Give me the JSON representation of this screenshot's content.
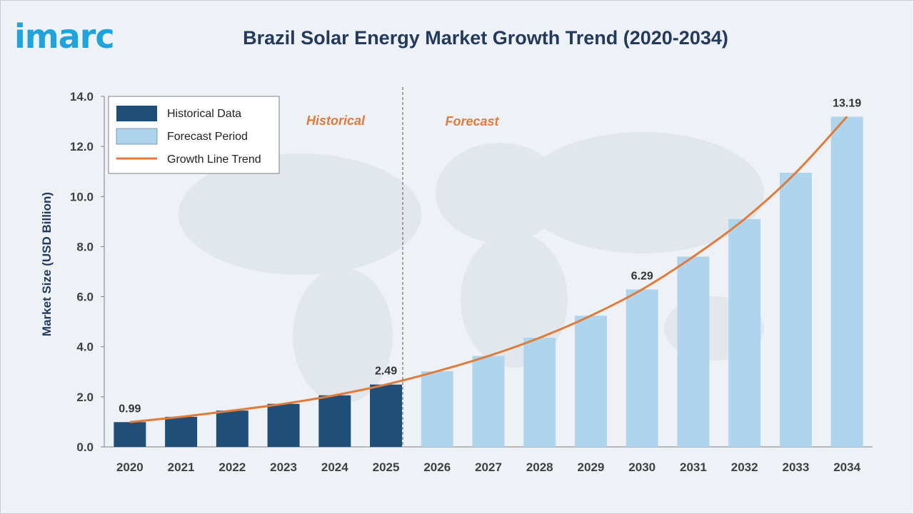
{
  "header": {
    "logo_text": "imarc",
    "title": "Brazil Solar Energy Market Growth Trend (2020-2034)"
  },
  "legend": {
    "historical": "Historical Data",
    "forecast": "Forecast Period",
    "growth": "Growth Line Trend"
  },
  "section_labels": {
    "historical": "Historical",
    "forecast": "Forecast"
  },
  "colors": {
    "historical_bar": "#1f4e79",
    "forecast_bar": "#aed4ee",
    "growth_line": "#e07b39",
    "section_label": "#e07b39",
    "axis_text": "#404040",
    "title": "#23395d",
    "logo": "#1fa3dd"
  },
  "chart_data": {
    "type": "bar",
    "title": "Brazil Solar Energy Market Growth Trend (2020-2034)",
    "xlabel": "",
    "ylabel": "Market Size (USD Billion)",
    "ylim": [
      0,
      14
    ],
    "yticks": [
      "0.0",
      "2.0",
      "4.0",
      "6.0",
      "8.0",
      "10.0",
      "12.0",
      "14.0"
    ],
    "categories": [
      "2020",
      "2021",
      "2022",
      "2023",
      "2024",
      "2025",
      "2026",
      "2027",
      "2028",
      "2029",
      "2030",
      "2031",
      "2032",
      "2033",
      "2034"
    ],
    "values": [
      0.99,
      1.2,
      1.45,
      1.72,
      2.06,
      2.49,
      3.02,
      3.63,
      4.36,
      5.24,
      6.29,
      7.6,
      9.1,
      10.95,
      13.19
    ],
    "period": [
      "historical",
      "historical",
      "historical",
      "historical",
      "historical",
      "historical",
      "forecast",
      "forecast",
      "forecast",
      "forecast",
      "forecast",
      "forecast",
      "forecast",
      "forecast",
      "forecast"
    ],
    "data_labels": [
      {
        "category": "2020",
        "text": "0.99"
      },
      {
        "category": "2025",
        "text": "2.49"
      },
      {
        "category": "2030",
        "text": "6.29"
      },
      {
        "category": "2034",
        "text": "13.19"
      }
    ],
    "series": [
      {
        "name": "Historical Data",
        "kind": "bar"
      },
      {
        "name": "Forecast Period",
        "kind": "bar"
      },
      {
        "name": "Growth Line Trend",
        "kind": "line"
      }
    ],
    "grid": false,
    "legend_position": "top-left"
  }
}
